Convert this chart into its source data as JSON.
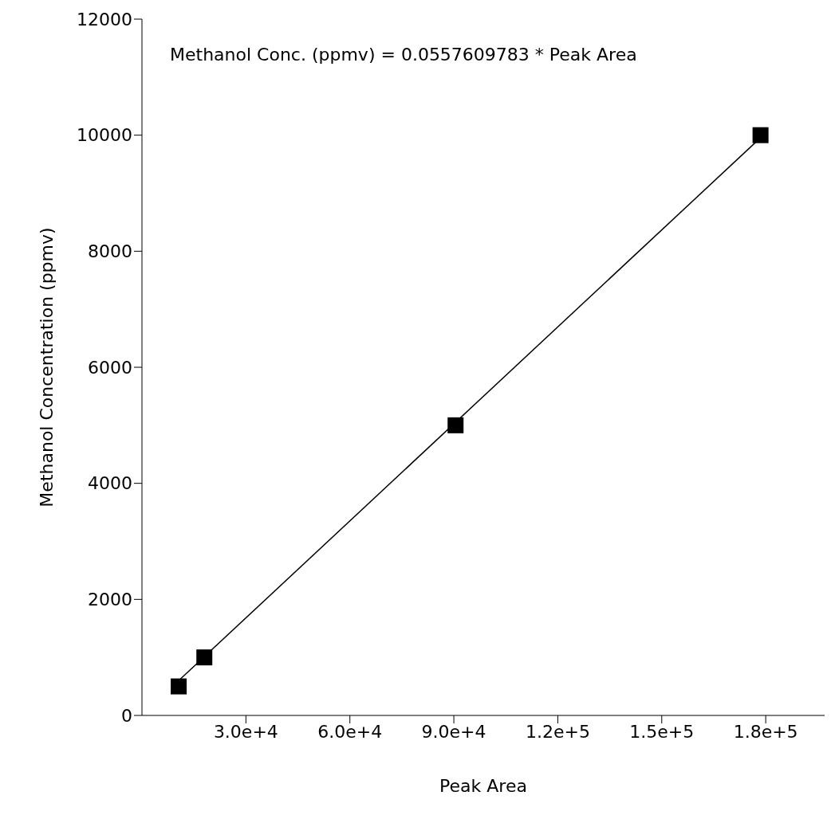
{
  "chart_data": {
    "type": "scatter",
    "xlabel": "Peak Area",
    "ylabel": "Methanol Concentration (ppmv)",
    "annotations": [
      "Methanol Conc. (ppmv) = 0.0557609783 * Peak Area"
    ],
    "series": [
      {
        "color": "#000000",
        "marker": "square",
        "x": [
          10600,
          18000,
          90500,
          178500
        ],
        "values": [
          500,
          1000,
          5000,
          10000
        ]
      },
      {
        "type": "line",
        "color": "#000000",
        "marker": "none",
        "line_style": "solid",
        "x": [
          10600,
          179300
        ],
        "values": [
          600,
          10000
        ]
      }
    ],
    "xlim": [
      0,
      197000
    ],
    "xticks": [
      {
        "value": 30000,
        "label": "3.0e+4"
      },
      {
        "value": 60000,
        "label": "6.0e+4"
      },
      {
        "value": 90000,
        "label": "9.0e+4"
      },
      {
        "value": 120000,
        "label": "1.2e+5"
      },
      {
        "value": 150000,
        "label": "1.5e+5"
      },
      {
        "value": 180000,
        "label": "1.8e+5"
      }
    ],
    "ylim": [
      0,
      12000
    ],
    "yticks": [
      0,
      2000,
      4000,
      6000,
      8000,
      10000,
      12000
    ],
    "grid": false
  }
}
